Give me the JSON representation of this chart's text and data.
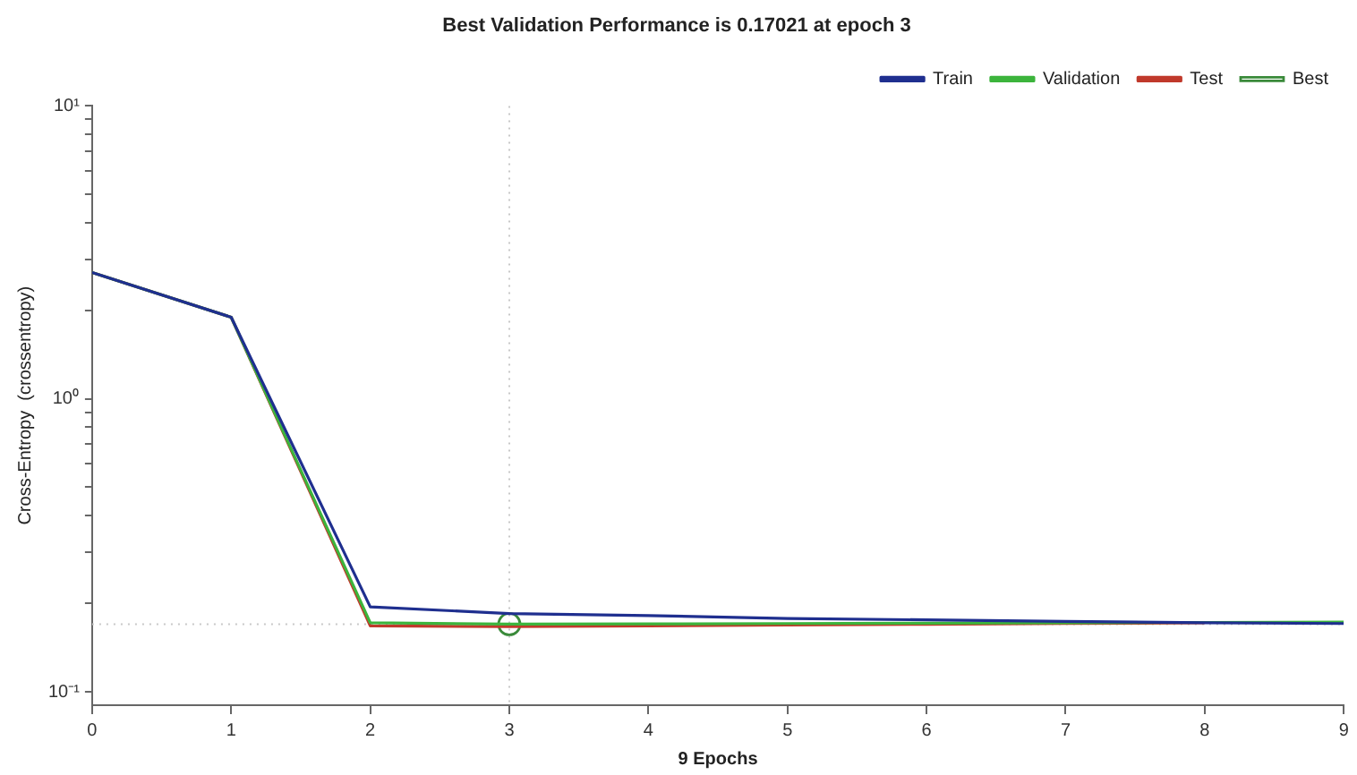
{
  "chart_data": {
    "type": "line",
    "title": "Best Validation Performance is 0.17021 at epoch 3",
    "xlabel": "9 Epochs",
    "ylabel": "Cross-Entropy  (crossentropy)",
    "x": [
      0,
      1,
      2,
      3,
      4,
      5,
      6,
      7,
      8,
      9
    ],
    "series": [
      {
        "name": "Train",
        "color": "#1f2f8f",
        "values": [
          2.7,
          1.9,
          0.195,
          0.185,
          0.182,
          0.178,
          0.176,
          0.174,
          0.172,
          0.171
        ]
      },
      {
        "name": "Validation",
        "color": "#3cb43c",
        "values": [
          2.7,
          1.9,
          0.172,
          0.17021,
          0.1705,
          0.171,
          0.1715,
          0.172,
          0.1725,
          0.173
        ]
      },
      {
        "name": "Test",
        "color": "#c0392b",
        "values": [
          2.7,
          1.9,
          0.168,
          0.167,
          0.168,
          0.169,
          0.17,
          0.171,
          0.172,
          null
        ]
      },
      {
        "name": "Best",
        "type": "scatter",
        "marker": "circle",
        "color": "#3a8a3a",
        "x": [
          3
        ],
        "values": [
          0.17021
        ]
      }
    ],
    "ref_lines": [
      {
        "axis": "x",
        "value": 3,
        "color": "#c8c8c8",
        "line_style": "dotted"
      },
      {
        "axis": "y",
        "value": 0.17021,
        "color": "#c8c8c8",
        "line_style": "dotted"
      }
    ],
    "log": "y",
    "grid": false,
    "legend": "top right",
    "marker": "none",
    "line_style": "solid",
    "xlim": [
      0,
      9
    ],
    "xticks": [
      0,
      1,
      2,
      3,
      4,
      5,
      6,
      7,
      8,
      9
    ],
    "ylim": [
      0.09,
      10
    ],
    "yticks": [
      {
        "value": 0.1,
        "label": "10⁻¹"
      },
      {
        "value": 0.2,
        "label": null
      },
      {
        "value": 0.3,
        "label": null
      },
      {
        "value": 0.4,
        "label": null
      },
      {
        "value": 0.5,
        "label": null
      },
      {
        "value": 0.6,
        "label": null
      },
      {
        "value": 0.7,
        "label": null
      },
      {
        "value": 0.8,
        "label": null
      },
      {
        "value": 0.9,
        "label": null
      },
      {
        "value": 1,
        "label": "10⁰"
      },
      {
        "value": 2,
        "label": null
      },
      {
        "value": 3,
        "label": null
      },
      {
        "value": 4,
        "label": null
      },
      {
        "value": 5,
        "label": null
      },
      {
        "value": 6,
        "label": null
      },
      {
        "value": 7,
        "label": null
      },
      {
        "value": 8,
        "label": null
      },
      {
        "value": 9,
        "label": null
      },
      {
        "value": 10,
        "label": "10¹"
      }
    ]
  }
}
